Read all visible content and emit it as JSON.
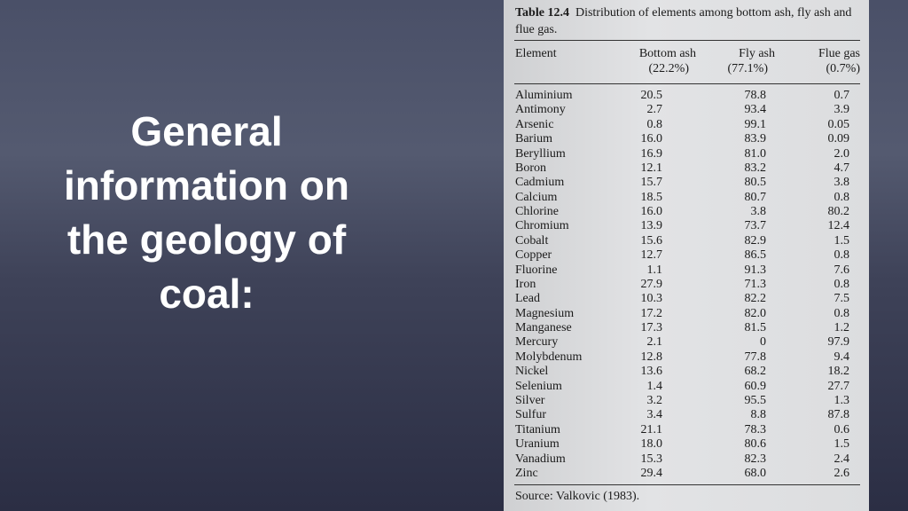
{
  "slide": {
    "title": "General information on the geology of coal:"
  },
  "table": {
    "label": "Table 12.4",
    "caption": "Distribution of elements among bottom ash, fly ash and flue gas.",
    "element_header": "Element",
    "headers": [
      {
        "name": "Bottom ash",
        "share": "(22.2%)"
      },
      {
        "name": "Fly ash",
        "share": "(77.1%)"
      },
      {
        "name": "Flue gas",
        "share": "(0.7%)"
      }
    ],
    "rows": [
      [
        "Aluminium",
        "20.5",
        "78.8",
        "0.7"
      ],
      [
        "Antimony",
        "2.7",
        "93.4",
        "3.9"
      ],
      [
        "Arsenic",
        "0.8",
        "99.1",
        "0.05"
      ],
      [
        "Barium",
        "16.0",
        "83.9",
        "0.09"
      ],
      [
        "Beryllium",
        "16.9",
        "81.0",
        "2.0"
      ],
      [
        "Boron",
        "12.1",
        "83.2",
        "4.7"
      ],
      [
        "Cadmium",
        "15.7",
        "80.5",
        "3.8"
      ],
      [
        "Calcium",
        "18.5",
        "80.7",
        "0.8"
      ],
      [
        "Chlorine",
        "16.0",
        "3.8",
        "80.2"
      ],
      [
        "Chromium",
        "13.9",
        "73.7",
        "12.4"
      ],
      [
        "Cobalt",
        "15.6",
        "82.9",
        "1.5"
      ],
      [
        "Copper",
        "12.7",
        "86.5",
        "0.8"
      ],
      [
        "Fluorine",
        "1.1",
        "91.3",
        "7.6"
      ],
      [
        "Iron",
        "27.9",
        "71.3",
        "0.8"
      ],
      [
        "Lead",
        "10.3",
        "82.2",
        "7.5"
      ],
      [
        "Magnesium",
        "17.2",
        "82.0",
        "0.8"
      ],
      [
        "Manganese",
        "17.3",
        "81.5",
        "1.2"
      ],
      [
        "Mercury",
        "2.1",
        "0",
        "97.9"
      ],
      [
        "Molybdenum",
        "12.8",
        "77.8",
        "9.4"
      ],
      [
        "Nickel",
        "13.6",
        "68.2",
        "18.2"
      ],
      [
        "Selenium",
        "1.4",
        "60.9",
        "27.7"
      ],
      [
        "Silver",
        "3.2",
        "95.5",
        "1.3"
      ],
      [
        "Sulfur",
        "3.4",
        "8.8",
        "87.8"
      ],
      [
        "Titanium",
        "21.1",
        "78.3",
        "0.6"
      ],
      [
        "Uranium",
        "18.0",
        "80.6",
        "1.5"
      ],
      [
        "Vanadium",
        "15.3",
        "82.3",
        "2.4"
      ],
      [
        "Zinc",
        "29.4",
        "68.0",
        "2.6"
      ]
    ],
    "source": "Source: Valkovic (1983)."
  }
}
